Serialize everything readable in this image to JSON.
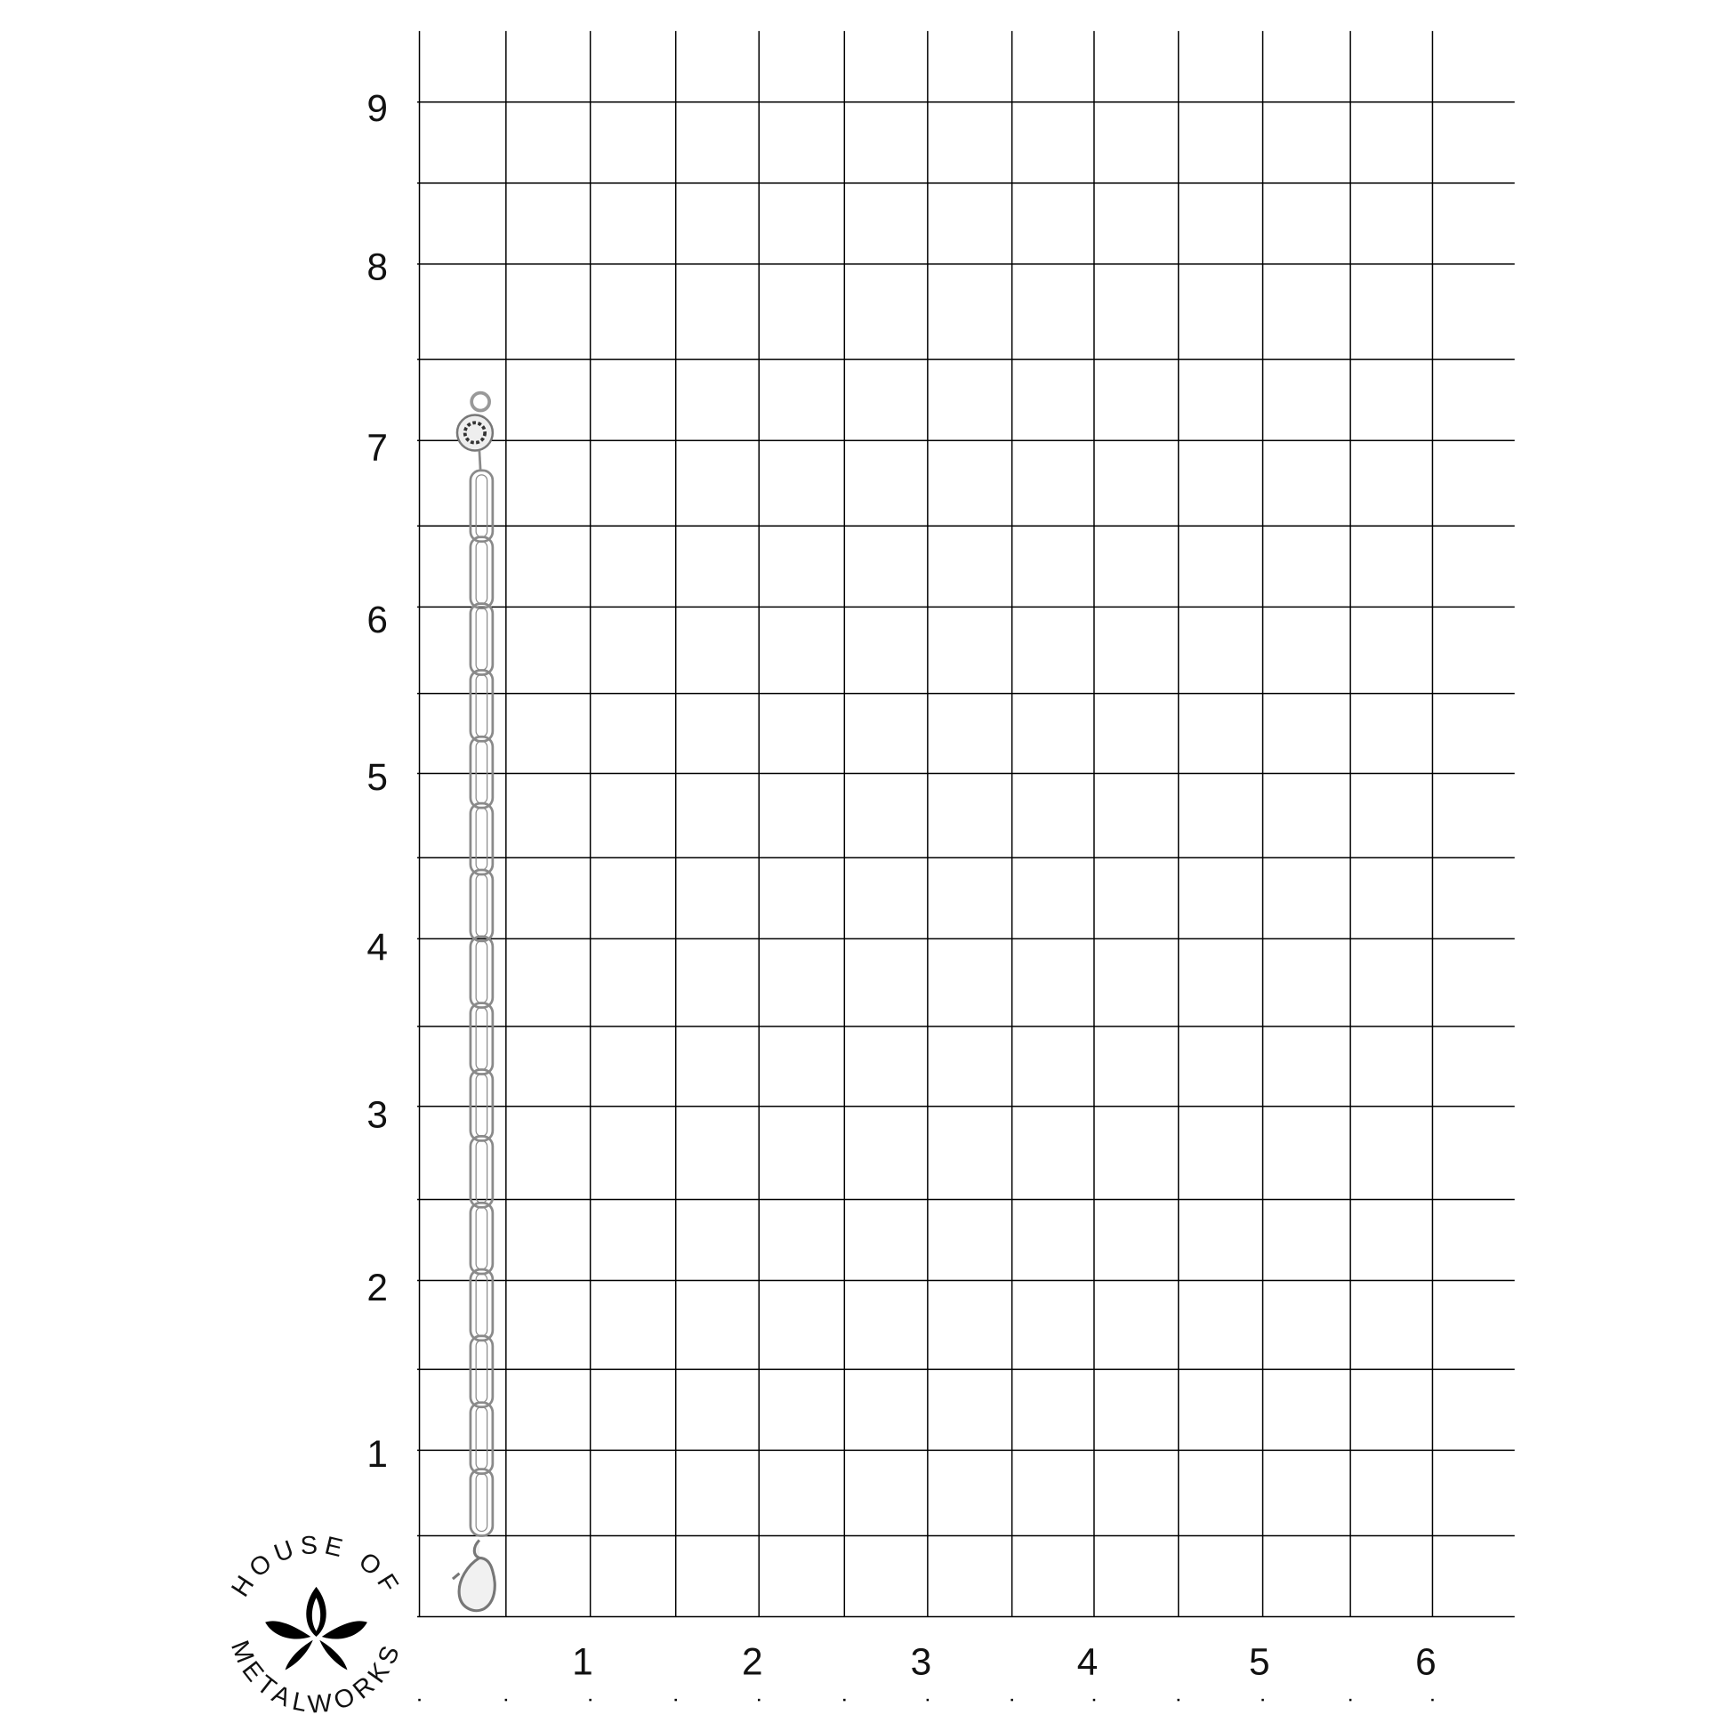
{
  "grid": {
    "y_labels": [
      "9",
      "8",
      "7",
      "6",
      "5",
      "4",
      "3",
      "2",
      "1"
    ],
    "x_labels": [
      "1",
      "2",
      "3",
      "4",
      "5",
      "6"
    ],
    "line_color": "#000000"
  },
  "product": {
    "type": "paperclip chain bracelet",
    "color": "#9a9a9a",
    "clasp_top": "round engraved box clasp",
    "clasp_bottom": "lobster claw clasp"
  },
  "logo": {
    "top_text": "HOUSE OF",
    "bottom_text": "METALWORKS",
    "icon": "lotus-icon"
  }
}
